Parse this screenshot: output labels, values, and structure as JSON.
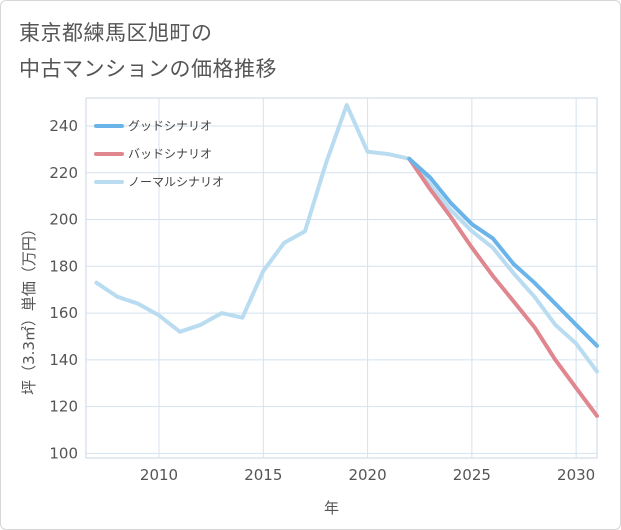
{
  "title": {
    "line1": "東京都練馬区旭町の",
    "line2": "中古マンションの価格推移"
  },
  "chart_data": {
    "type": "line",
    "xlabel": "年",
    "ylabel": "坪（3.3㎡）単価（万円）",
    "xlim": [
      2006.5,
      2031
    ],
    "ylim": [
      98,
      252
    ],
    "xticks": [
      2010,
      2015,
      2020,
      2025,
      2030
    ],
    "yticks": [
      100,
      120,
      140,
      160,
      180,
      200,
      220,
      240
    ],
    "grid": true,
    "legend_position": "top-left",
    "series": [
      {
        "name": "グッドシナリオ",
        "color": "#6ab4ea",
        "x": [
          2022,
          2023,
          2024,
          2025,
          2026,
          2027,
          2028,
          2029,
          2030,
          2031
        ],
        "values": [
          226,
          218,
          207,
          198,
          192,
          181,
          173,
          164,
          155,
          146
        ]
      },
      {
        "name": "バッドシナリオ",
        "color": "#e0868f",
        "x": [
          2022,
          2023,
          2024,
          2025,
          2026,
          2027,
          2028,
          2029,
          2030,
          2031
        ],
        "values": [
          226,
          213,
          201,
          188,
          176,
          165,
          154,
          140,
          128,
          116
        ]
      },
      {
        "name": "ノーマルシナリオ",
        "color": "#b9dcf0",
        "x": [
          2007,
          2008,
          2009,
          2010,
          2011,
          2012,
          2013,
          2014,
          2015,
          2016,
          2017,
          2018,
          2019,
          2020,
          2021,
          2022,
          2023,
          2024,
          2025,
          2026,
          2027,
          2028,
          2029,
          2030,
          2031
        ],
        "values": [
          173,
          167,
          164,
          159,
          152,
          155,
          160,
          158,
          178,
          190,
          195,
          224,
          249,
          229,
          228,
          226,
          215,
          204,
          195,
          188,
          177,
          167,
          155,
          147,
          135
        ]
      }
    ]
  }
}
